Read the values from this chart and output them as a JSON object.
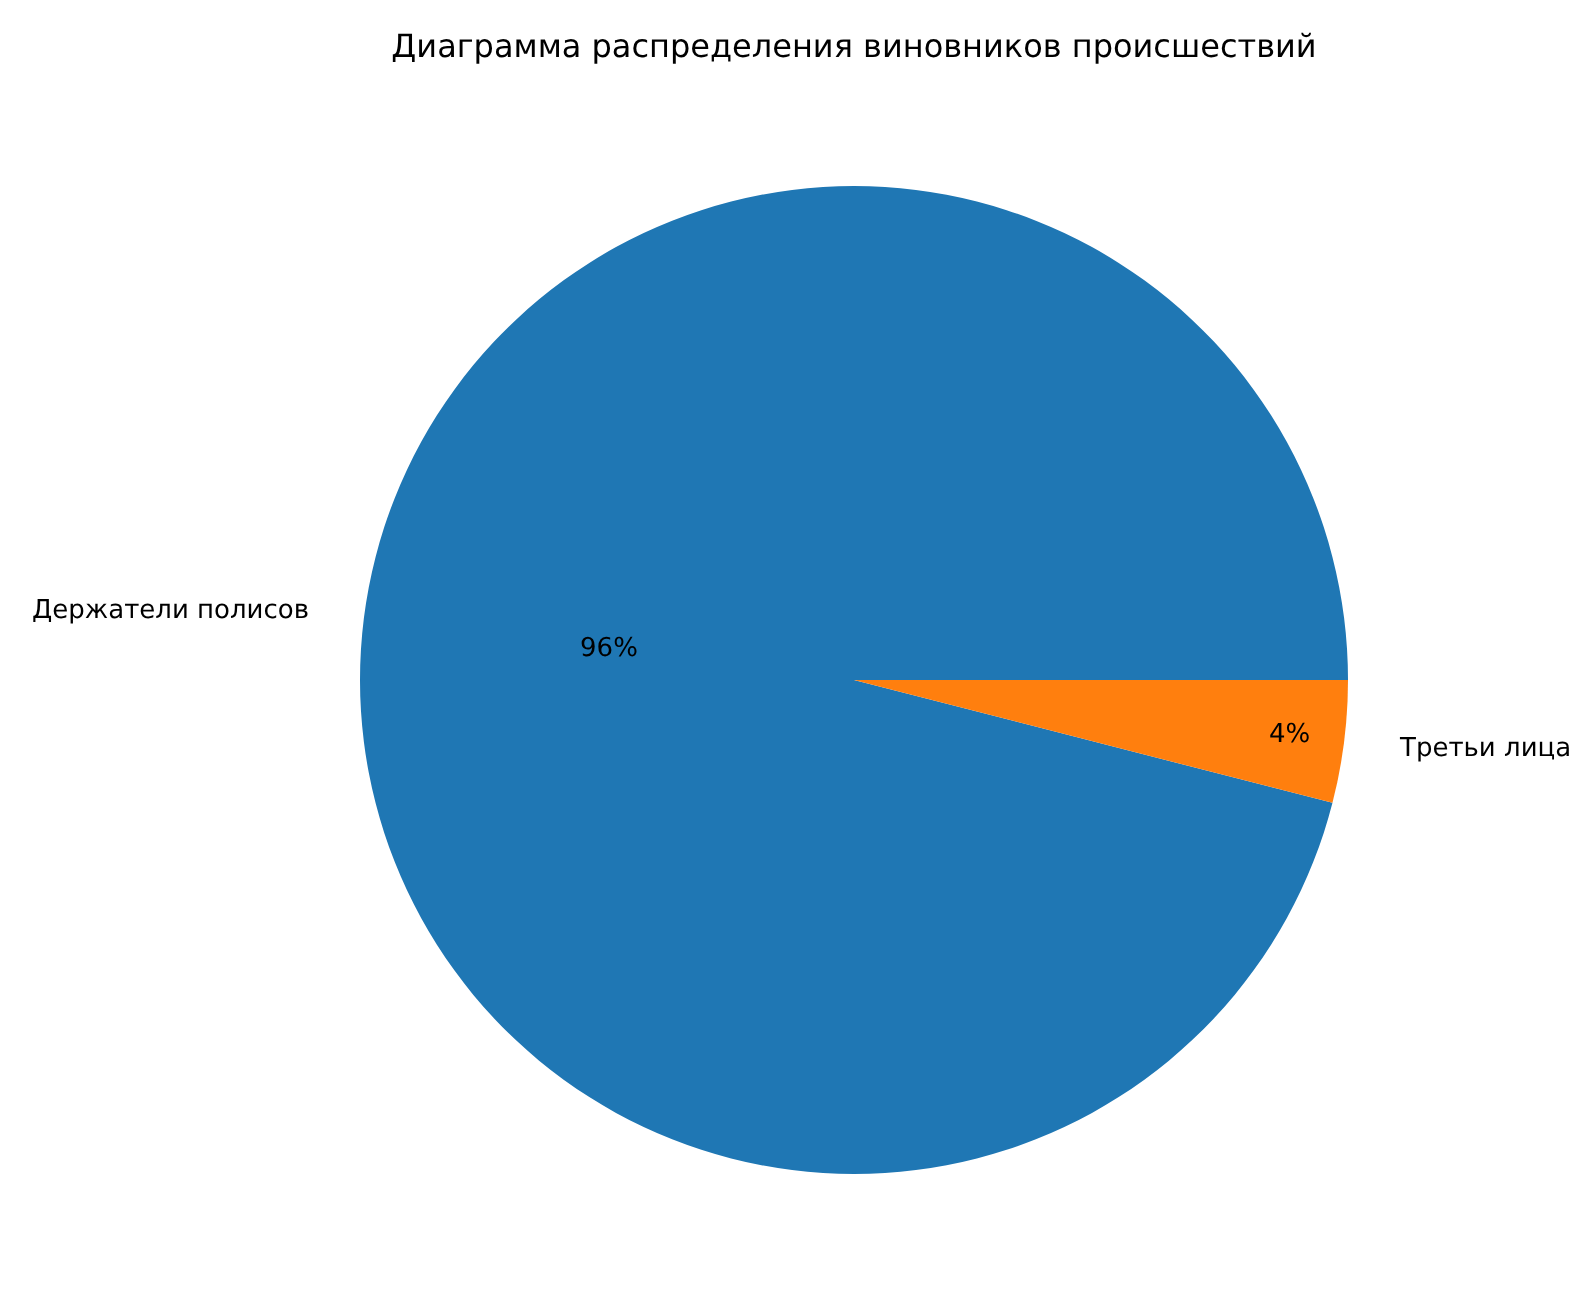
{
  "chart_data": {
    "type": "pie",
    "title": "Диаграмма распределения виновников происшествий",
    "categories": [
      "Держатели полисов",
      "Третьи лица"
    ],
    "values": [
      96,
      4
    ],
    "value_labels": [
      "96%",
      "4%"
    ],
    "colors": [
      "#1f77b4",
      "#ff7f0e"
    ],
    "legend": false
  }
}
